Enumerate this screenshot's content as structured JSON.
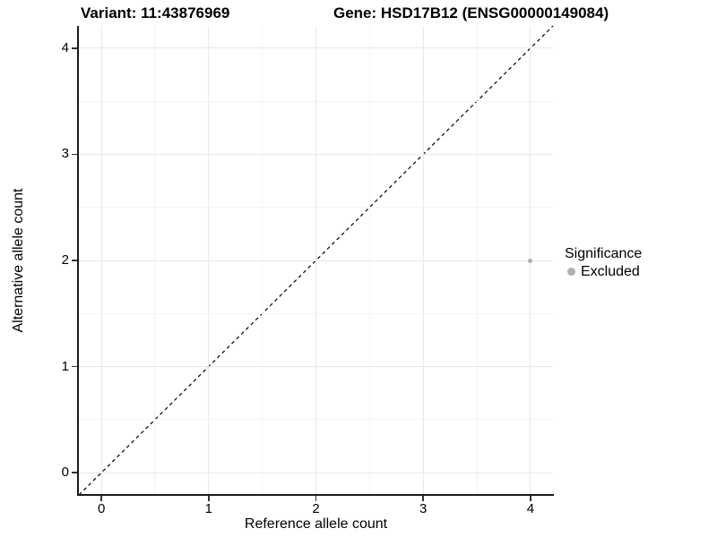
{
  "titles": {
    "variant": "Variant: 11:43876969",
    "gene": "Gene: HSD17B12 (ENSG00000149084)"
  },
  "legend": {
    "title": "Significance",
    "items": [
      {
        "label": "Excluded",
        "color": "#b0b0b0"
      }
    ]
  },
  "chart_data": {
    "type": "scatter",
    "title_left": "Variant: 11:43876969",
    "title_right": "Gene: HSD17B12 (ENSG00000149084)",
    "xlabel": "Reference allele count",
    "ylabel": "Alternative allele count",
    "xlim": [
      -0.21,
      4.21
    ],
    "ylim": [
      -0.21,
      4.21
    ],
    "x_ticks": [
      0,
      1,
      2,
      3,
      4
    ],
    "y_ticks": [
      0,
      1,
      2,
      3,
      4
    ],
    "grid": {
      "major": [
        0,
        1,
        2,
        3,
        4
      ],
      "minor": [
        0.5,
        1.5,
        2.5,
        3.5
      ],
      "major_color": "#e8e8e8",
      "minor_color": "#f4f4f4"
    },
    "series": [
      {
        "name": "Excluded",
        "color": "#b0b0b0",
        "point_size": 5,
        "points": [
          {
            "x": 4,
            "y": 2
          }
        ]
      }
    ],
    "reference_line": {
      "slope": 1,
      "intercept": 0,
      "style": "dashed",
      "color": "#000000"
    },
    "legend_position": "right",
    "legend_title": "Significance"
  },
  "colors": {
    "background": "#ffffff",
    "axis_line": "#1a1a1a",
    "text": "#000000"
  }
}
